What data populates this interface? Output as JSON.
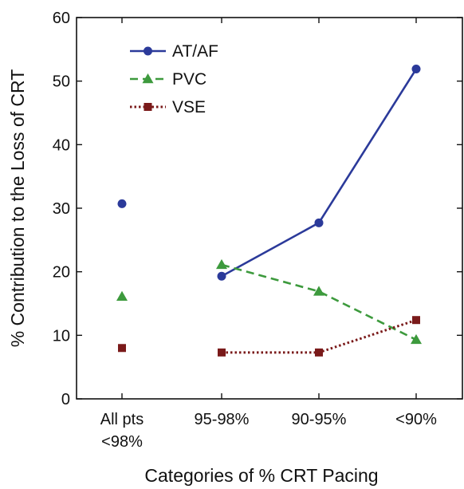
{
  "chart_data": {
    "type": "line",
    "title": "",
    "xlabel": "Categories of % CRT Pacing",
    "ylabel": "% Contribution to the Loss of CRT",
    "ylim": [
      0,
      60
    ],
    "yticks": [
      "0",
      "10",
      "20",
      "30",
      "40",
      "50",
      "60"
    ],
    "categories": [
      [
        "All pts",
        "<98%"
      ],
      [
        "95-98%"
      ],
      [
        "90-95%"
      ],
      [
        "<90%"
      ]
    ],
    "grid": false,
    "legend_position": "top-left",
    "series": [
      {
        "name": "AT/AF",
        "color": "#2b3a9a",
        "marker": "circle",
        "line_style": "solid",
        "values": [
          30.7,
          19.3,
          27.7,
          51.9
        ],
        "connected_from_index": 1
      },
      {
        "name": "PVC",
        "color": "#3d9a3d",
        "marker": "triangle",
        "line_style": "dashed",
        "values": [
          16.1,
          21.1,
          16.9,
          9.3
        ],
        "connected_from_index": 1
      },
      {
        "name": "VSE",
        "color": "#7a1a1a",
        "marker": "square",
        "line_style": "dotted",
        "values": [
          8.0,
          7.3,
          7.3,
          12.4
        ],
        "connected_from_index": 1
      }
    ]
  }
}
